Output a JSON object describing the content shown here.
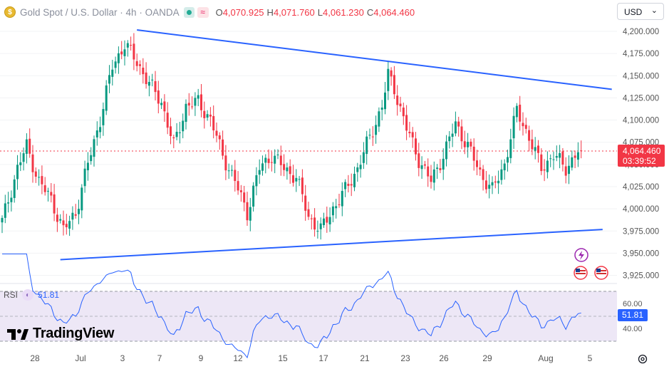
{
  "header": {
    "symbol_icon_text": "$",
    "title": "Gold Spot / U.S. Dollar · 4h · OANDA",
    "ohlc": [
      {
        "key": "O",
        "value": "4,070.925"
      },
      {
        "key": "H",
        "value": "4,071.760"
      },
      {
        "key": "L",
        "value": "4,061.230"
      },
      {
        "key": "C",
        "value": "4,064.460"
      }
    ],
    "delay_icon_text": "≈"
  },
  "currency": {
    "value": "USD",
    "arrow": "⌄"
  },
  "current_price": {
    "price": "4,064.460",
    "countdown": "03:39:52"
  },
  "rsi": {
    "label": "RSI",
    "value": "51.81",
    "badge": "51.81",
    "ticks": [
      "60.00",
      "40.00"
    ]
  },
  "logo": {
    "text": "TradingView"
  },
  "colors": {
    "up": "#089981",
    "down": "#f23645",
    "trendline": "#2962ff",
    "rsi_line": "#2962ff",
    "rsi_band": "#ede7f6"
  },
  "chart_data": {
    "type": "candlestick",
    "price_axis": {
      "ticks": [
        "4,200.000",
        "4,175.000",
        "4,150.000",
        "4,125.000",
        "4,100.000",
        "4,075.000",
        "4,050.000",
        "4,025.000",
        "4,000.000",
        "3,975.000",
        "3,950.000",
        "3,925.000"
      ],
      "range": [
        3920,
        4215
      ]
    },
    "time_axis": {
      "ticks": [
        "28",
        "Jul",
        "3",
        "7",
        "9",
        "12",
        "15",
        "17",
        "21",
        "23",
        "26",
        "29",
        "Aug",
        "5"
      ]
    },
    "close_path": [
      {
        "i": 0,
        "p": 3985
      },
      {
        "i": 5,
        "p": 4045
      },
      {
        "i": 8,
        "p": 4070
      },
      {
        "i": 12,
        "p": 4030
      },
      {
        "i": 16,
        "p": 4010
      },
      {
        "i": 20,
        "p": 3975
      },
      {
        "i": 24,
        "p": 3995
      },
      {
        "i": 28,
        "p": 4050
      },
      {
        "i": 32,
        "p": 4100
      },
      {
        "i": 36,
        "p": 4160
      },
      {
        "i": 40,
        "p": 4185
      },
      {
        "i": 44,
        "p": 4165
      },
      {
        "i": 48,
        "p": 4140
      },
      {
        "i": 52,
        "p": 4120
      },
      {
        "i": 56,
        "p": 4070
      },
      {
        "i": 60,
        "p": 4115
      },
      {
        "i": 64,
        "p": 4120
      },
      {
        "i": 68,
        "p": 4100
      },
      {
        "i": 72,
        "p": 4060
      },
      {
        "i": 76,
        "p": 4030
      },
      {
        "i": 80,
        "p": 3995
      },
      {
        "i": 84,
        "p": 4045
      },
      {
        "i": 88,
        "p": 4060
      },
      {
        "i": 92,
        "p": 4045
      },
      {
        "i": 96,
        "p": 4035
      },
      {
        "i": 100,
        "p": 3990
      },
      {
        "i": 104,
        "p": 3975
      },
      {
        "i": 108,
        "p": 4000
      },
      {
        "i": 112,
        "p": 4020
      },
      {
        "i": 116,
        "p": 4045
      },
      {
        "i": 120,
        "p": 4080
      },
      {
        "i": 124,
        "p": 4115
      },
      {
        "i": 126,
        "p": 4150
      },
      {
        "i": 128,
        "p": 4135
      },
      {
        "i": 132,
        "p": 4090
      },
      {
        "i": 136,
        "p": 4055
      },
      {
        "i": 140,
        "p": 4030
      },
      {
        "i": 144,
        "p": 4060
      },
      {
        "i": 148,
        "p": 4095
      },
      {
        "i": 152,
        "p": 4070
      },
      {
        "i": 156,
        "p": 4040
      },
      {
        "i": 160,
        "p": 4020
      },
      {
        "i": 164,
        "p": 4050
      },
      {
        "i": 168,
        "p": 4110
      },
      {
        "i": 172,
        "p": 4080
      },
      {
        "i": 176,
        "p": 4045
      },
      {
        "i": 180,
        "p": 4060
      },
      {
        "i": 184,
        "p": 4045
      },
      {
        "i": 188,
        "p": 4064
      }
    ],
    "trendlines": [
      {
        "from": {
          "i": 44,
          "p": 4201
        },
        "to": {
          "i": 199,
          "p": 4134
        }
      },
      {
        "from": {
          "i": 19,
          "p": 3942
        },
        "to": {
          "i": 196,
          "p": 3976
        }
      }
    ],
    "last_price": 4064.46
  }
}
